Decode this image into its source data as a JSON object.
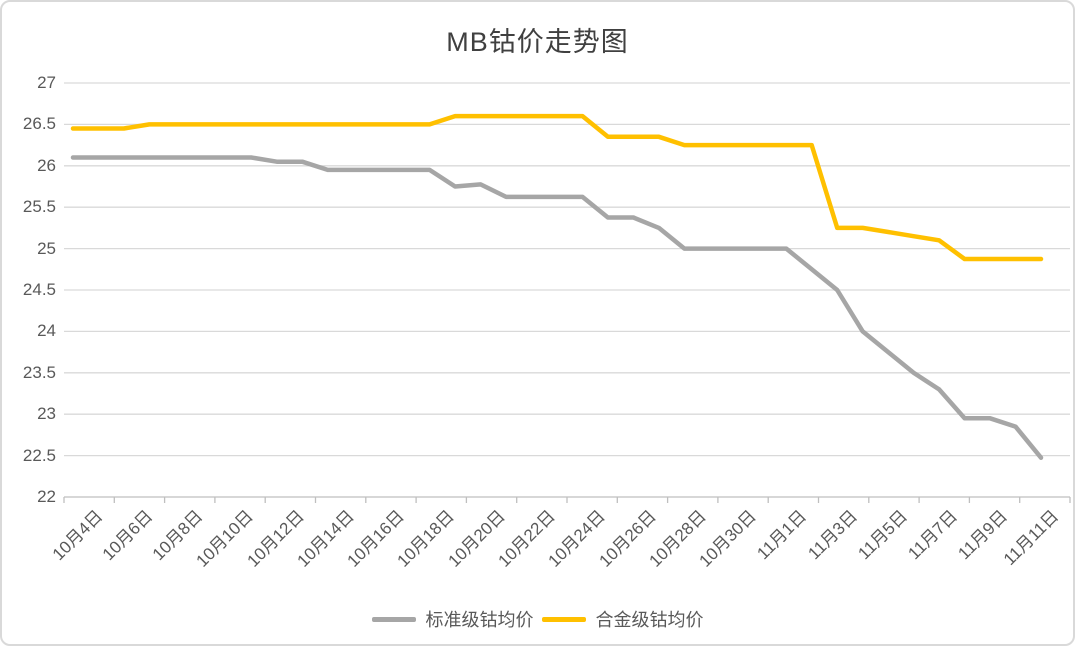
{
  "title": "MB钴价走势图",
  "chart_data": {
    "type": "line",
    "title": "MB钴价走势图",
    "x": [
      "10月4日",
      "10月5日",
      "10月6日",
      "10月7日",
      "10月8日",
      "10月9日",
      "10月10日",
      "10月11日",
      "10月12日",
      "10月13日",
      "10月14日",
      "10月15日",
      "10月16日",
      "10月17日",
      "10月18日",
      "10月19日",
      "10月20日",
      "10月21日",
      "10月22日",
      "10月23日",
      "10月24日",
      "10月25日",
      "10月26日",
      "10月27日",
      "10月28日",
      "10月29日",
      "10月30日",
      "10月31日",
      "11月1日",
      "11月2日",
      "11月3日",
      "11月4日",
      "11月5日",
      "11月6日",
      "11月7日",
      "11月8日",
      "11月9日",
      "11月10日",
      "11月11日"
    ],
    "x_tick_labels": [
      "10月4日",
      "10月6日",
      "10月8日",
      "10月10日",
      "10月12日",
      "10月14日",
      "10月16日",
      "10月18日",
      "10月20日",
      "10月22日",
      "10月24日",
      "10月26日",
      "10月28日",
      "10月30日",
      "11月1日",
      "11月3日",
      "11月5日",
      "11月7日",
      "11月9日",
      "11月11日"
    ],
    "series": [
      {
        "name": "标准级钴均价",
        "color": "#a6a6a6",
        "values": [
          26.1,
          26.1,
          26.1,
          26.1,
          26.1,
          26.1,
          26.1,
          26.1,
          26.05,
          26.05,
          25.95,
          25.95,
          25.95,
          25.95,
          25.95,
          25.75,
          25.775,
          25.625,
          25.625,
          25.625,
          25.625,
          25.375,
          25.375,
          25.25,
          25.0,
          25.0,
          25.0,
          25.0,
          25.0,
          24.75,
          24.5,
          24.0,
          23.75,
          23.5,
          23.3,
          22.95,
          22.95,
          22.85,
          22.475
        ]
      },
      {
        "name": "合金级钴均价",
        "color": "#ffc000",
        "values": [
          26.45,
          26.45,
          26.45,
          26.5,
          26.5,
          26.5,
          26.5,
          26.5,
          26.5,
          26.5,
          26.5,
          26.5,
          26.5,
          26.5,
          26.5,
          26.6,
          26.6,
          26.6,
          26.6,
          26.6,
          26.6,
          26.35,
          26.35,
          26.35,
          26.25,
          26.25,
          26.25,
          26.25,
          26.25,
          26.25,
          25.25,
          25.25,
          25.2,
          25.15,
          25.1,
          24.875,
          24.875,
          24.875,
          24.875
        ]
      }
    ],
    "ylim": [
      22,
      27
    ],
    "ytick_step": 0.5,
    "y_tick_labels": [
      "22",
      "22.5",
      "23",
      "23.5",
      "24",
      "24.5",
      "25",
      "25.5",
      "26",
      "26.5",
      "27"
    ],
    "grid": true,
    "legend_position": "bottom",
    "gridline_color": "#d9d9d9",
    "axis_line_color": "#bfbfbf",
    "label_color": "#595959",
    "title_color": "#404040"
  }
}
